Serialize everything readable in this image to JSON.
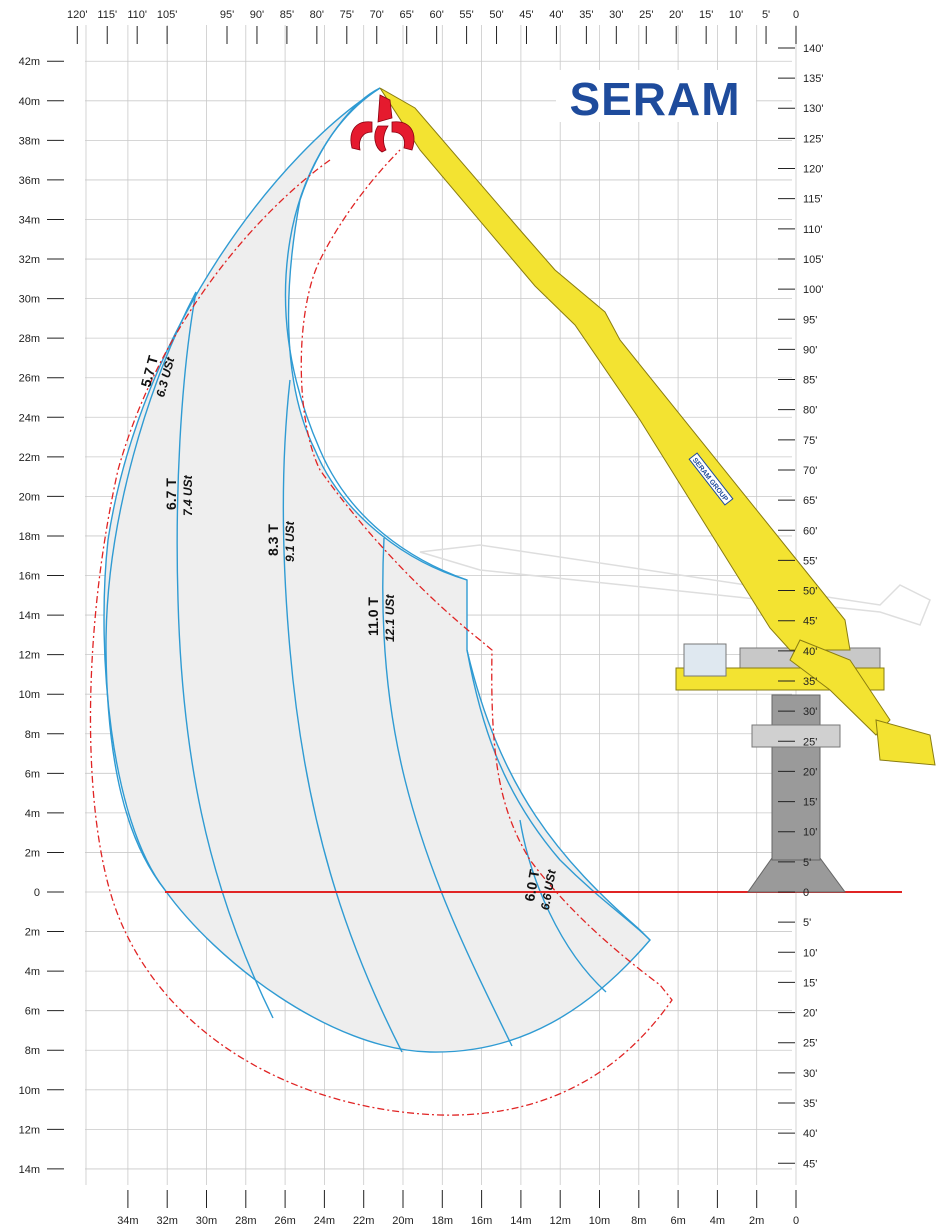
{
  "brand": {
    "name": "SERAM",
    "color": "#1e4b9c",
    "boom_label": "SERAM GROUP"
  },
  "colors": {
    "grid": "#c9c9c9",
    "envelope": "#2f9bd3",
    "envelope_fill": "#eeeeee",
    "reach_limit": "#e02424",
    "ground": "#e02424",
    "crane_yellow": "#f3e331",
    "crane_grey": "#9a9a9a",
    "grab_red": "#e51a2e"
  },
  "axes": {
    "left_height_labels": [
      "42m",
      "40m",
      "38m",
      "36m",
      "34m",
      "32m",
      "30m",
      "28m",
      "26m",
      "24m",
      "22m",
      "20m",
      "18m",
      "16m",
      "14m",
      "12m",
      "10m",
      "8m",
      "6m",
      "4m",
      "2m",
      "0",
      "2m",
      "4m",
      "6m",
      "8m",
      "10m",
      "12m",
      "14m"
    ],
    "right_height_labels": [
      "140'",
      "135'",
      "130'",
      "125'",
      "120'",
      "115'",
      "110'",
      "105'",
      "100'",
      "95'",
      "90'",
      "85'",
      "80'",
      "75'",
      "70'",
      "65'",
      "60'",
      "55'",
      "50'",
      "45'",
      "40'",
      "35'",
      "30'",
      "25'",
      "20'",
      "15'",
      "10'",
      "5'",
      "0",
      "5'",
      "10'",
      "15'",
      "20'",
      "25'",
      "30'",
      "35'",
      "40'",
      "45'"
    ],
    "top_reach_labels": [
      "120'",
      "115'",
      "110'",
      "105'",
      "95'",
      "90'",
      "85'",
      "80'",
      "75'",
      "70'",
      "65'",
      "60'",
      "55'",
      "50'",
      "45'",
      "40'",
      "35'",
      "30'",
      "25'",
      "20'",
      "15'",
      "10'",
      "5'",
      "0"
    ],
    "bottom_reach_labels": [
      "34m",
      "32m",
      "30m",
      "28m",
      "26m",
      "24m",
      "22m",
      "20m",
      "18m",
      "16m",
      "14m",
      "12m",
      "10m",
      "8m",
      "6m",
      "4m",
      "2m",
      "0"
    ]
  },
  "capacities": [
    {
      "metric": "5.7 T",
      "us": "6.3 USt"
    },
    {
      "metric": "6.7 T",
      "us": "7.4 USt"
    },
    {
      "metric": "8.3 T",
      "us": "9.1 USt"
    },
    {
      "metric": "11.0 T",
      "us": "12.1 USt"
    },
    {
      "metric": "6.0 T",
      "us": "6.6 USt"
    }
  ]
}
